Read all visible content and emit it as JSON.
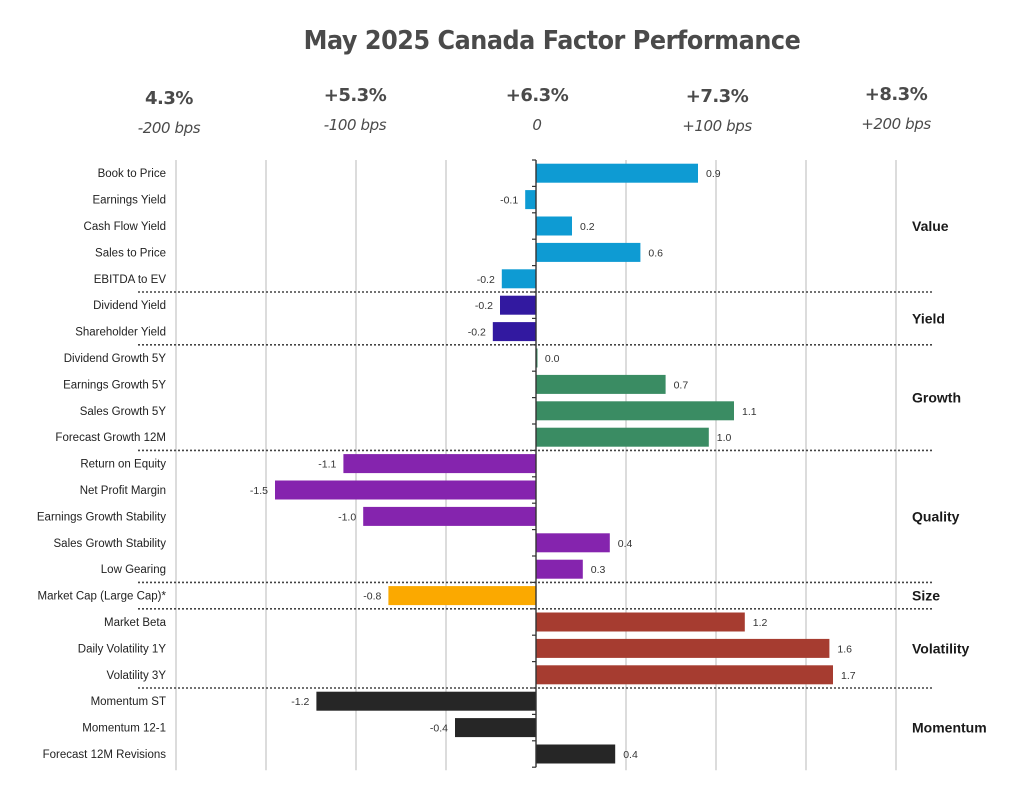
{
  "chart_data": {
    "type": "bar",
    "orientation": "horizontal",
    "title": "May 2025 Canada Factor Performance",
    "top_scale": [
      {
        "pct": "4.3%",
        "bps": "-200 bps"
      },
      {
        "pct": "+5.3%",
        "bps": "-100 bps"
      },
      {
        "pct": "+6.3%",
        "bps": "0"
      },
      {
        "pct": "+7.3%",
        "bps": "+100 bps"
      },
      {
        "pct": "+8.3%",
        "bps": "+200 bps"
      }
    ],
    "xlim": [
      -2.0,
      2.0
    ],
    "gridlines": [
      -2.0,
      -1.5,
      -1.0,
      -0.5,
      0.5,
      1.0,
      1.5,
      2.0
    ],
    "grid": true,
    "groups": [
      {
        "name": "Value",
        "color": "#0e9bd3",
        "factors": [
          {
            "label": "Book to Price",
            "value": 0.9,
            "value_label": "0.9"
          },
          {
            "label": "Earnings Yield",
            "value": -0.06,
            "value_label": "-0.1"
          },
          {
            "label": "Cash Flow Yield",
            "value": 0.2,
            "value_label": "0.2"
          },
          {
            "label": "Sales to Price",
            "value": 0.58,
            "value_label": "0.6"
          },
          {
            "label": "EBITDA to EV",
            "value": -0.19,
            "value_label": "-0.2"
          }
        ]
      },
      {
        "name": "Yield",
        "color": "#3219a0",
        "factors": [
          {
            "label": "Dividend Yield",
            "value": -0.2,
            "value_label": "-0.2"
          },
          {
            "label": "Shareholder Yield",
            "value": -0.24,
            "value_label": "-0.2"
          }
        ]
      },
      {
        "name": "Growth",
        "color": "#3a8c63",
        "factors": [
          {
            "label": "Dividend Growth 5Y",
            "value": 0.005,
            "value_label": "0.0"
          },
          {
            "label": "Earnings Growth 5Y",
            "value": 0.72,
            "value_label": "0.7"
          },
          {
            "label": "Sales Growth 5Y",
            "value": 1.1,
            "value_label": "1.1"
          },
          {
            "label": "Forecast Growth 12M",
            "value": 0.96,
            "value_label": "1.0"
          }
        ]
      },
      {
        "name": "Quality",
        "color": "#8524ae",
        "factors": [
          {
            "label": "Return on Equity",
            "value": -1.07,
            "value_label": "-1.1"
          },
          {
            "label": "Net Profit Margin",
            "value": -1.45,
            "value_label": "-1.5"
          },
          {
            "label": "Earnings Growth Stability",
            "value": -0.96,
            "value_label": "-1.0"
          },
          {
            "label": "Sales Growth Stability",
            "value": 0.41,
            "value_label": "0.4"
          },
          {
            "label": "Low Gearing",
            "value": 0.26,
            "value_label": "0.3"
          }
        ]
      },
      {
        "name": "Size",
        "color": "#fba900",
        "factors": [
          {
            "label": "Market Cap (Large Cap)*",
            "value": -0.82,
            "value_label": "-0.8"
          }
        ]
      },
      {
        "name": "Volatility",
        "color": "#a63c30",
        "factors": [
          {
            "label": "Market Beta",
            "value": 1.16,
            "value_label": "1.2"
          },
          {
            "label": "Daily Volatility 1Y",
            "value": 1.63,
            "value_label": "1.6"
          },
          {
            "label": "Volatility 3Y",
            "value": 1.65,
            "value_label": "1.7"
          }
        ]
      },
      {
        "name": "Momentum",
        "color": "#262626",
        "factors": [
          {
            "label": "Momentum ST",
            "value": -1.22,
            "value_label": "-1.2"
          },
          {
            "label": "Momentum 12-1",
            "value": -0.45,
            "value_label": "-0.4"
          },
          {
            "label": "Forecast 12M Revisions",
            "value": 0.44,
            "value_label": "0.4"
          }
        ]
      }
    ],
    "xlabel": "",
    "ylabel": ""
  }
}
